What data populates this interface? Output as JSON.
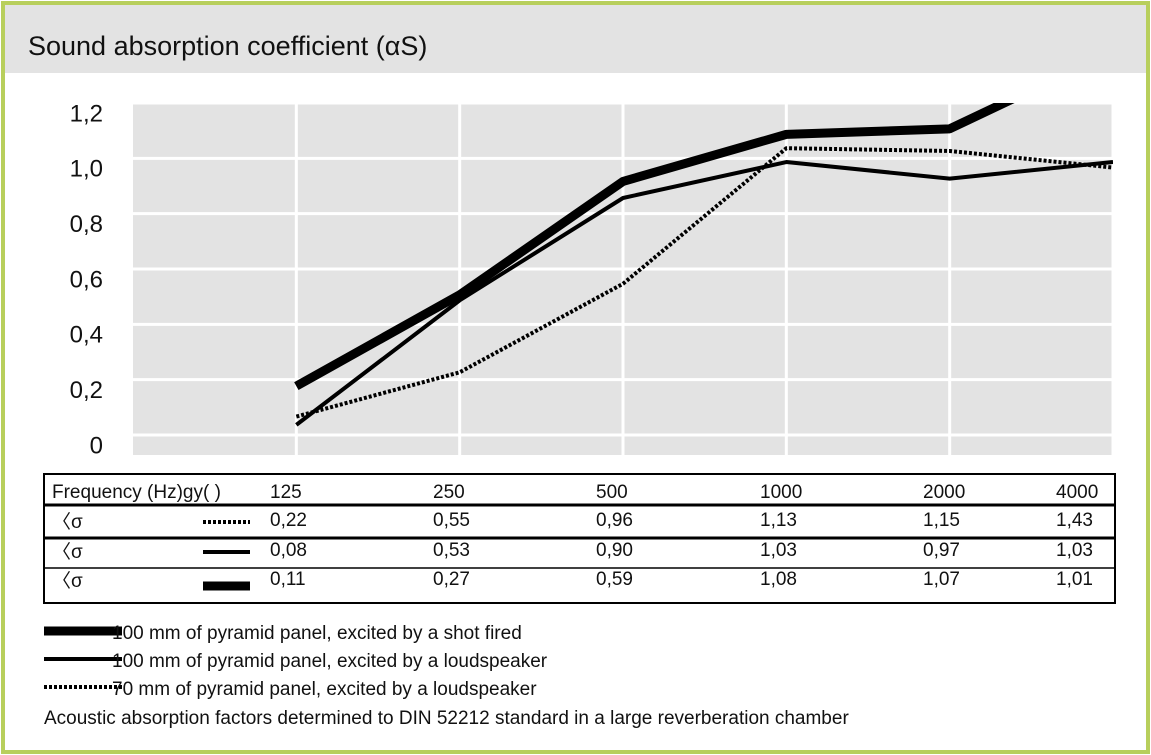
{
  "chart_data": {
    "type": "line",
    "title": "Sound absorption coefficient (αS)",
    "table_header": "Frequency (Hz)gy( )",
    "row_label": "〈σ",
    "categories": [
      "125",
      "250",
      "500",
      "1000",
      "2000",
      "4000"
    ],
    "series": [
      {
        "name": "100 mm of pyramid panel, excited by a shot fired",
        "color": "#000000",
        "style": "thick",
        "values": [
          0.22,
          0.55,
          0.96,
          1.13,
          1.15,
          1.43
        ],
        "value_labels": [
          "0,22",
          "0,55",
          "0,96",
          "1,13",
          "1,15",
          "1,43"
        ]
      },
      {
        "name": "100 mm of pyramid panel, excited by a loudspeaker",
        "color": "#000000",
        "style": "solid",
        "values": [
          0.08,
          0.53,
          0.9,
          1.03,
          0.97,
          1.03
        ],
        "value_labels": [
          "0,08",
          "0,53",
          "0,90",
          "1,03",
          "0,97",
          "1,03"
        ]
      },
      {
        "name": "70 mm of pyramid panel, excited by a loudspeaker",
        "color": "#000000",
        "style": "dotted",
        "values": [
          0.11,
          0.27,
          0.59,
          1.08,
          1.07,
          1.01
        ],
        "value_labels": [
          "0,11",
          "0,27",
          "0,59",
          "1,08",
          "1,07",
          "1,01"
        ]
      }
    ],
    "ylim": [
      0,
      1.2
    ],
    "yticks": [
      0,
      {
        "value": 0.2,
        "label": "0,2"
      },
      {
        "value": 0.4,
        "label": "0,4"
      },
      {
        "value": 0.6,
        "label": "0,6"
      },
      {
        "value": 0.8,
        "label": "0,8"
      },
      {
        "value": 1.0,
        "label": "1,0"
      },
      {
        "value": 1.2,
        "label": "1,2"
      }
    ],
    "grid": true,
    "note": "Acoustic absorption factors determined to DIN 52212 standard in a large reverberation chamber"
  }
}
